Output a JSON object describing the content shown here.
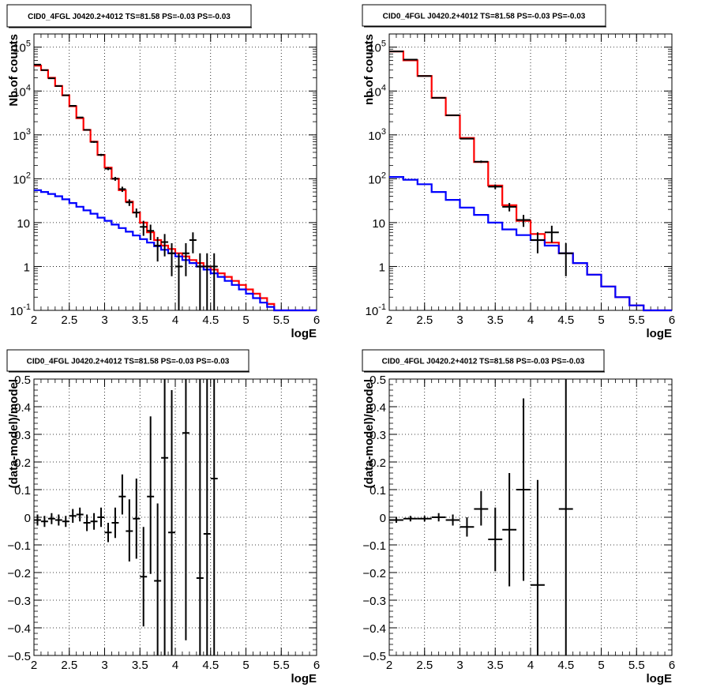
{
  "chart_data": [
    {
      "type": "histogram",
      "title": "CID0_4FGL J0420.2+4012 TS=81.58 PS=-0.03 PS=-0.03",
      "xlabel": "logE",
      "ylabel": "Nb of counts",
      "xlim": [
        2,
        6
      ],
      "ylim": [
        0.1,
        200000
      ],
      "yscale": "log",
      "grid": true,
      "x_ticks": [
        "2",
        "2.5",
        "3",
        "3.5",
        "4",
        "4.5",
        "5",
        "5.5",
        "6"
      ],
      "y_ticks": [
        "10^-1",
        "1",
        "10",
        "10^2",
        "10^3",
        "10^4",
        "10^5"
      ],
      "bin_edges": [
        2.0,
        2.1,
        2.2,
        2.3,
        2.4,
        2.5,
        2.6,
        2.7,
        2.8,
        2.9,
        3.0,
        3.1,
        3.2,
        3.3,
        3.4,
        3.5,
        3.6,
        3.7,
        3.8,
        3.9,
        4.0,
        4.1,
        4.2,
        4.3,
        4.4,
        4.5,
        4.6,
        4.7,
        4.8,
        4.9,
        5.0,
        5.1,
        5.2,
        5.3,
        5.4,
        5.5,
        5.6,
        5.7,
        5.8,
        5.9,
        6.0
      ],
      "series": [
        {
          "color": "#ff0000",
          "style": "step",
          "values": [
            38000,
            30000,
            20000,
            13000,
            8000,
            4500,
            2400,
            1300,
            700,
            350,
            180,
            100,
            55,
            30,
            17,
            10,
            6,
            4,
            3,
            2.5,
            2.0,
            1.7,
            1.4,
            1.2,
            1.0,
            0.85,
            0.7,
            0.58,
            0.47,
            0.38,
            0.3,
            0.24,
            0.19,
            0.14,
            0.1,
            0.1,
            0.1,
            0.1,
            0.1,
            0.1
          ]
        },
        {
          "color": "#0000ff",
          "style": "step",
          "values": [
            55,
            50,
            45,
            40,
            34,
            28,
            23,
            19,
            16,
            13,
            11,
            9,
            7.5,
            6.2,
            5.1,
            4.2,
            3.5,
            2.9,
            2.4,
            2.0,
            1.7,
            1.4,
            1.2,
            1.0,
            0.85,
            0.7,
            0.58,
            0.47,
            0.38,
            0.3,
            0.24,
            0.19,
            0.15,
            0.12,
            0.1,
            0.1,
            0.1,
            0.1,
            0.1,
            0.1
          ]
        }
      ],
      "data_points": [
        {
          "x": 2.05,
          "y": 40000,
          "ylo": 39800,
          "yhi": 40200
        },
        {
          "x": 2.15,
          "y": 30000,
          "ylo": 29800,
          "yhi": 30200
        },
        {
          "x": 2.25,
          "y": 19500,
          "ylo": 19300,
          "yhi": 19700
        },
        {
          "x": 2.35,
          "y": 13000,
          "ylo": 12800,
          "yhi": 13200
        },
        {
          "x": 2.45,
          "y": 8000,
          "ylo": 7900,
          "yhi": 8100
        },
        {
          "x": 2.55,
          "y": 4600,
          "ylo": 4500,
          "yhi": 4700
        },
        {
          "x": 2.65,
          "y": 2500,
          "ylo": 2450,
          "yhi": 2550
        },
        {
          "x": 2.75,
          "y": 1300,
          "ylo": 1260,
          "yhi": 1340
        },
        {
          "x": 2.85,
          "y": 690,
          "ylo": 660,
          "yhi": 720
        },
        {
          "x": 2.95,
          "y": 350,
          "ylo": 330,
          "yhi": 370
        },
        {
          "x": 3.05,
          "y": 170,
          "ylo": 157,
          "yhi": 183
        },
        {
          "x": 3.15,
          "y": 100,
          "ylo": 90,
          "yhi": 110
        },
        {
          "x": 3.25,
          "y": 58,
          "ylo": 50,
          "yhi": 66
        },
        {
          "x": 3.35,
          "y": 29,
          "ylo": 24,
          "yhi": 34
        },
        {
          "x": 3.45,
          "y": 17,
          "ylo": 13,
          "yhi": 21
        },
        {
          "x": 3.55,
          "y": 8,
          "ylo": 5,
          "yhi": 11
        },
        {
          "x": 3.65,
          "y": 6.5,
          "ylo": 4,
          "yhi": 9
        },
        {
          "x": 3.75,
          "y": 3,
          "ylo": 1.3,
          "yhi": 4.7
        },
        {
          "x": 3.85,
          "y": 3.6,
          "ylo": 1.7,
          "yhi": 5.5
        },
        {
          "x": 3.95,
          "y": 2,
          "ylo": 0.6,
          "yhi": 3.4
        },
        {
          "x": 4.05,
          "y": 1,
          "ylo": 0.1,
          "yhi": 2.0
        },
        {
          "x": 4.15,
          "y": 2,
          "ylo": 0.6,
          "yhi": 3.4
        },
        {
          "x": 4.25,
          "y": 4,
          "ylo": 2,
          "yhi": 6
        },
        {
          "x": 4.35,
          "y": 1,
          "ylo": 0.1,
          "yhi": 2.0
        },
        {
          "x": 4.45,
          "y": 1,
          "ylo": 0.1,
          "yhi": 2.0
        },
        {
          "x": 4.55,
          "y": 1,
          "ylo": 0.1,
          "yhi": 2.0
        }
      ]
    },
    {
      "type": "histogram",
      "title": "CID0_4FGL J0420.2+4012 TS=81.58 PS=-0.03 PS=-0.03",
      "xlabel": "logE",
      "ylabel": "nb of counts",
      "xlim": [
        2,
        6
      ],
      "ylim": [
        0.1,
        200000
      ],
      "yscale": "log",
      "grid": true,
      "x_ticks": [
        "2",
        "2.5",
        "3",
        "3.5",
        "4",
        "4.5",
        "5",
        "5.5",
        "6"
      ],
      "y_ticks": [
        "10^-1",
        "1",
        "10",
        "10^2",
        "10^3",
        "10^4",
        "10^5"
      ],
      "bin_edges": [
        2.0,
        2.2,
        2.4,
        2.6,
        2.8,
        3.0,
        3.2,
        3.4,
        3.6,
        3.8,
        4.0,
        4.2,
        4.4,
        4.6,
        4.8,
        5.0,
        5.2,
        5.4,
        5.6,
        5.8,
        6.0
      ],
      "series": [
        {
          "color": "#ff0000",
          "style": "step",
          "values": [
            80000,
            50000,
            22000,
            7000,
            2800,
            850,
            240,
            70,
            25,
            11,
            5.5,
            3.5,
            2.0,
            1.2,
            0.65,
            0.35,
            0.2,
            0.13,
            0.1,
            0.1
          ]
        },
        {
          "color": "#0000ff",
          "style": "step",
          "values": [
            110,
            95,
            75,
            50,
            33,
            22,
            15,
            10,
            7,
            5.2,
            4.0,
            3.0,
            2.0,
            1.2,
            0.65,
            0.35,
            0.2,
            0.13,
            0.1,
            0.1
          ]
        }
      ],
      "data_points": [
        {
          "x": 2.1,
          "y": 80000,
          "ylo": 79700,
          "yhi": 80300
        },
        {
          "x": 2.3,
          "y": 52000,
          "ylo": 51700,
          "yhi": 52300
        },
        {
          "x": 2.5,
          "y": 22000,
          "ylo": 21800,
          "yhi": 22200
        },
        {
          "x": 2.7,
          "y": 7000,
          "ylo": 6900,
          "yhi": 7100
        },
        {
          "x": 2.9,
          "y": 2800,
          "ylo": 2750,
          "yhi": 2850
        },
        {
          "x": 3.1,
          "y": 820,
          "ylo": 790,
          "yhi": 850
        },
        {
          "x": 3.3,
          "y": 245,
          "ylo": 230,
          "yhi": 260
        },
        {
          "x": 3.5,
          "y": 66,
          "ylo": 58,
          "yhi": 74
        },
        {
          "x": 3.7,
          "y": 23,
          "ylo": 18,
          "yhi": 28
        },
        {
          "x": 3.9,
          "y": 11.5,
          "ylo": 8,
          "yhi": 15
        },
        {
          "x": 4.1,
          "y": 4,
          "ylo": 2,
          "yhi": 6
        },
        {
          "x": 4.3,
          "y": 6,
          "ylo": 3.5,
          "yhi": 8.5
        },
        {
          "x": 4.5,
          "y": 2,
          "ylo": 0.6,
          "yhi": 3.4
        }
      ]
    },
    {
      "type": "scatter",
      "title": "CID0_4FGL J0420.2+4012 TS=81.58 PS=-0.03 PS=-0.03",
      "xlabel": "logE",
      "ylabel": "(data-model)/model",
      "xlim": [
        2,
        6
      ],
      "ylim": [
        -0.5,
        0.5
      ],
      "grid": true,
      "x_ticks": [
        "2",
        "2.5",
        "3",
        "3.5",
        "4",
        "4.5",
        "5",
        "5.5",
        "6"
      ],
      "y_ticks": [
        "−0.5",
        "−0.4",
        "−0.3",
        "−0.2",
        "−0.1",
        "0",
        "0.1",
        "0.2",
        "0.3",
        "0.4",
        "0.5"
      ],
      "xerr": 0.05,
      "points": [
        {
          "x": 2.05,
          "y": -0.01,
          "ylo": -0.03,
          "yhi": 0.01
        },
        {
          "x": 2.15,
          "y": -0.015,
          "ylo": -0.035,
          "yhi": 0.005
        },
        {
          "x": 2.25,
          "y": -0.005,
          "ylo": -0.025,
          "yhi": 0.015
        },
        {
          "x": 2.35,
          "y": -0.01,
          "ylo": -0.03,
          "yhi": 0.01
        },
        {
          "x": 2.45,
          "y": -0.015,
          "ylo": -0.035,
          "yhi": 0.005
        },
        {
          "x": 2.55,
          "y": 0.005,
          "ylo": -0.02,
          "yhi": 0.03
        },
        {
          "x": 2.65,
          "y": 0.01,
          "ylo": -0.015,
          "yhi": 0.035
        },
        {
          "x": 2.75,
          "y": -0.02,
          "ylo": -0.05,
          "yhi": 0.01
        },
        {
          "x": 2.85,
          "y": -0.015,
          "ylo": -0.045,
          "yhi": 0.015
        },
        {
          "x": 2.95,
          "y": 0.0,
          "ylo": -0.035,
          "yhi": 0.035
        },
        {
          "x": 3.05,
          "y": -0.055,
          "ylo": -0.09,
          "yhi": -0.02
        },
        {
          "x": 3.15,
          "y": -0.02,
          "ylo": -0.075,
          "yhi": 0.035
        },
        {
          "x": 3.25,
          "y": 0.075,
          "ylo": 0.01,
          "yhi": 0.155
        },
        {
          "x": 3.35,
          "y": -0.05,
          "ylo": -0.16,
          "yhi": 0.065
        },
        {
          "x": 3.45,
          "y": -0.005,
          "ylo": -0.15,
          "yhi": 0.14
        },
        {
          "x": 3.55,
          "y": -0.215,
          "ylo": -0.395,
          "yhi": -0.035
        },
        {
          "x": 3.65,
          "y": 0.075,
          "ylo": -0.205,
          "yhi": 0.365
        },
        {
          "x": 3.75,
          "y": -0.23,
          "ylo": -0.5,
          "yhi": 0.05
        },
        {
          "x": 3.85,
          "y": 0.215,
          "ylo": -0.5,
          "yhi": 0.5
        },
        {
          "x": 3.95,
          "y": -0.055,
          "ylo": -0.5,
          "yhi": 0.46
        },
        {
          "x": 4.15,
          "y": 0.305,
          "ylo": -0.445,
          "yhi": 0.5
        },
        {
          "x": 4.35,
          "y": -0.22,
          "ylo": -0.5,
          "yhi": 0.5
        },
        {
          "x": 4.45,
          "y": -0.06,
          "ylo": -0.5,
          "yhi": 0.5
        },
        {
          "x": 4.55,
          "y": 0.14,
          "ylo": -0.5,
          "yhi": 0.5
        }
      ]
    },
    {
      "type": "scatter",
      "title": "CID0_4FGL J0420.2+4012 TS=81.58 PS=-0.03 PS=-0.03",
      "xlabel": "logE",
      "ylabel": "(data-model)/model",
      "xlim": [
        2,
        6
      ],
      "ylim": [
        -0.5,
        0.5
      ],
      "grid": true,
      "x_ticks": [
        "2",
        "2.5",
        "3",
        "3.5",
        "4",
        "4.5",
        "5",
        "5.5",
        "6"
      ],
      "y_ticks": [
        "−0.5",
        "−0.4",
        "−0.3",
        "−0.2",
        "−0.1",
        "0",
        "0.1",
        "0.2",
        "0.3",
        "0.4",
        "0.5"
      ],
      "xerr": 0.1,
      "points": [
        {
          "x": 2.1,
          "y": -0.01,
          "ylo": -0.02,
          "yhi": 0.0
        },
        {
          "x": 2.3,
          "y": -0.005,
          "ylo": -0.015,
          "yhi": 0.005
        },
        {
          "x": 2.5,
          "y": -0.005,
          "ylo": -0.015,
          "yhi": 0.005
        },
        {
          "x": 2.7,
          "y": 0.0,
          "ylo": -0.015,
          "yhi": 0.015
        },
        {
          "x": 2.9,
          "y": -0.01,
          "ylo": -0.03,
          "yhi": 0.01
        },
        {
          "x": 3.1,
          "y": -0.035,
          "ylo": -0.07,
          "yhi": 0.0
        },
        {
          "x": 3.3,
          "y": 0.03,
          "ylo": -0.03,
          "yhi": 0.095
        },
        {
          "x": 3.5,
          "y": -0.08,
          "ylo": -0.195,
          "yhi": 0.035
        },
        {
          "x": 3.7,
          "y": -0.045,
          "ylo": -0.25,
          "yhi": 0.16
        },
        {
          "x": 3.9,
          "y": 0.1,
          "ylo": -0.23,
          "yhi": 0.43
        },
        {
          "x": 4.1,
          "y": -0.245,
          "ylo": -0.5,
          "yhi": 0.135
        },
        {
          "x": 4.5,
          "y": 0.03,
          "ylo": -0.5,
          "yhi": 0.5
        }
      ]
    }
  ]
}
